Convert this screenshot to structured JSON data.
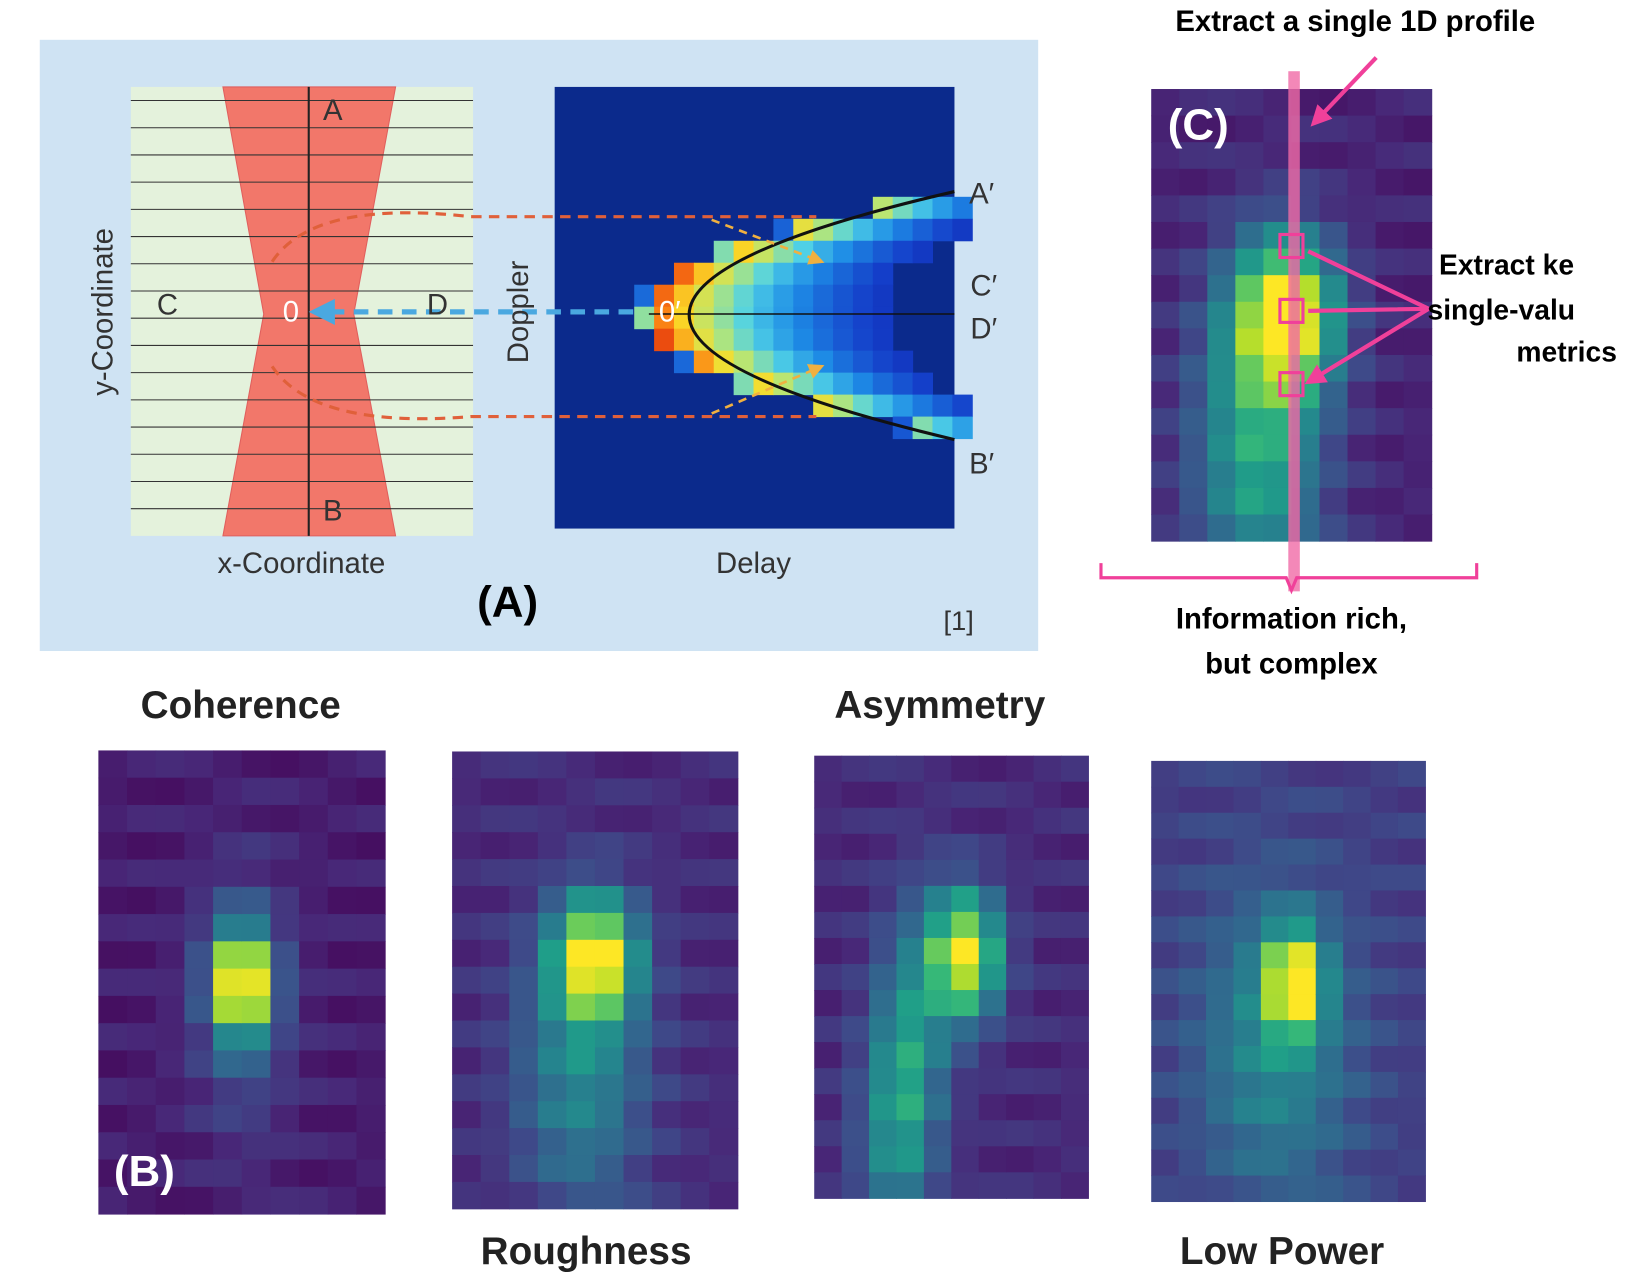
{
  "panel_a": {
    "y_axis": "y-Coordinate",
    "x_axis": "x-Coordinate",
    "doppler": "Doppler",
    "delay": "Delay",
    "points": [
      "A",
      "B",
      "C",
      "D",
      "0"
    ],
    "primes": [
      "A′",
      "C′",
      "D′",
      "B′",
      "0′"
    ],
    "label": "(A)",
    "ref": "[1]"
  },
  "panel_b": {
    "label": "(B)",
    "titles": [
      "Coherence",
      "Roughness",
      "Asymmetry",
      "Low Power"
    ]
  },
  "panel_c": {
    "title": "Extract a single 1D profile",
    "label": "(C)",
    "metrics": [
      "Extract ke",
      "single-valu",
      "metrics"
    ],
    "caption": [
      "Information rich,",
      "but complex"
    ]
  }
}
